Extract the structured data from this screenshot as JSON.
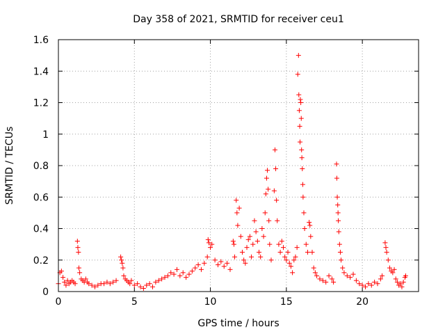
{
  "chart_data": {
    "type": "scatter",
    "title": "Day 358 of 2021, SRMTID for receiver ceu1",
    "xlabel": "GPS time / hours",
    "ylabel": "SRMTID / TECUs",
    "xlim": [
      0,
      23.7
    ],
    "ylim": [
      0,
      1.6
    ],
    "xticks": [
      0,
      5,
      10,
      15,
      20
    ],
    "xtick_labels": [
      "0",
      "5",
      "10",
      "15",
      "20"
    ],
    "yticks": [
      0,
      0.2,
      0.4,
      0.6,
      0.8,
      1.0,
      1.2,
      1.4,
      1.6
    ],
    "ytick_labels": [
      "0",
      "0.2",
      "0.4",
      "0.6",
      "0.8",
      "1",
      "1.2",
      "1.4",
      "1.6"
    ],
    "grid": true,
    "marker": "+",
    "color": "#ff0000",
    "series": [
      {
        "name": "SRMTID",
        "points": [
          [
            0.0,
            0.05
          ],
          [
            0.1,
            0.12
          ],
          [
            0.2,
            0.13
          ],
          [
            0.3,
            0.09
          ],
          [
            0.4,
            0.06
          ],
          [
            0.5,
            0.04
          ],
          [
            0.6,
            0.07
          ],
          [
            0.7,
            0.05
          ],
          [
            0.8,
            0.06
          ],
          [
            0.9,
            0.07
          ],
          [
            1.0,
            0.06
          ],
          [
            1.1,
            0.05
          ],
          [
            1.25,
            0.32
          ],
          [
            1.28,
            0.28
          ],
          [
            1.32,
            0.25
          ],
          [
            1.35,
            0.15
          ],
          [
            1.4,
            0.12
          ],
          [
            1.5,
            0.08
          ],
          [
            1.6,
            0.07
          ],
          [
            1.7,
            0.06
          ],
          [
            1.8,
            0.08
          ],
          [
            1.9,
            0.06
          ],
          [
            2.0,
            0.05
          ],
          [
            2.2,
            0.04
          ],
          [
            2.4,
            0.03
          ],
          [
            2.6,
            0.04
          ],
          [
            2.8,
            0.05
          ],
          [
            3.0,
            0.05
          ],
          [
            3.2,
            0.06
          ],
          [
            3.4,
            0.05
          ],
          [
            3.6,
            0.06
          ],
          [
            3.8,
            0.07
          ],
          [
            4.1,
            0.22
          ],
          [
            4.15,
            0.2
          ],
          [
            4.2,
            0.18
          ],
          [
            4.25,
            0.15
          ],
          [
            4.3,
            0.1
          ],
          [
            4.4,
            0.08
          ],
          [
            4.5,
            0.07
          ],
          [
            4.6,
            0.06
          ],
          [
            4.7,
            0.05
          ],
          [
            4.8,
            0.07
          ],
          [
            5.0,
            0.04
          ],
          [
            5.2,
            0.05
          ],
          [
            5.4,
            0.03
          ],
          [
            5.6,
            0.02
          ],
          [
            5.8,
            0.04
          ],
          [
            6.0,
            0.05
          ],
          [
            6.2,
            0.03
          ],
          [
            6.4,
            0.06
          ],
          [
            6.6,
            0.07
          ],
          [
            6.8,
            0.08
          ],
          [
            7.0,
            0.09
          ],
          [
            7.2,
            0.1
          ],
          [
            7.4,
            0.12
          ],
          [
            7.6,
            0.11
          ],
          [
            7.8,
            0.14
          ],
          [
            8.0,
            0.1
          ],
          [
            8.2,
            0.12
          ],
          [
            8.4,
            0.09
          ],
          [
            8.6,
            0.11
          ],
          [
            8.8,
            0.13
          ],
          [
            9.0,
            0.15
          ],
          [
            9.2,
            0.17
          ],
          [
            9.4,
            0.14
          ],
          [
            9.6,
            0.18
          ],
          [
            9.8,
            0.22
          ],
          [
            9.85,
            0.33
          ],
          [
            9.9,
            0.31
          ],
          [
            10.0,
            0.28
          ],
          [
            10.1,
            0.3
          ],
          [
            10.3,
            0.2
          ],
          [
            10.5,
            0.17
          ],
          [
            10.7,
            0.19
          ],
          [
            10.9,
            0.16
          ],
          [
            11.1,
            0.18
          ],
          [
            11.3,
            0.14
          ],
          [
            11.5,
            0.32
          ],
          [
            11.55,
            0.3
          ],
          [
            11.6,
            0.22
          ],
          [
            11.7,
            0.58
          ],
          [
            11.75,
            0.5
          ],
          [
            11.8,
            0.42
          ],
          [
            11.9,
            0.53
          ],
          [
            12.0,
            0.35
          ],
          [
            12.1,
            0.25
          ],
          [
            12.2,
            0.2
          ],
          [
            12.3,
            0.18
          ],
          [
            12.4,
            0.28
          ],
          [
            12.5,
            0.33
          ],
          [
            12.6,
            0.35
          ],
          [
            12.7,
            0.22
          ],
          [
            12.8,
            0.3
          ],
          [
            12.9,
            0.45
          ],
          [
            13.0,
            0.38
          ],
          [
            13.1,
            0.32
          ],
          [
            13.2,
            0.25
          ],
          [
            13.3,
            0.22
          ],
          [
            13.4,
            0.4
          ],
          [
            13.5,
            0.35
          ],
          [
            13.6,
            0.5
          ],
          [
            13.65,
            0.62
          ],
          [
            13.7,
            0.72
          ],
          [
            13.75,
            0.77
          ],
          [
            13.8,
            0.65
          ],
          [
            13.85,
            0.45
          ],
          [
            13.9,
            0.3
          ],
          [
            14.0,
            0.2
          ],
          [
            14.2,
            0.64
          ],
          [
            14.25,
            0.9
          ],
          [
            14.3,
            0.78
          ],
          [
            14.35,
            0.58
          ],
          [
            14.4,
            0.45
          ],
          [
            14.5,
            0.3
          ],
          [
            14.6,
            0.25
          ],
          [
            14.7,
            0.32
          ],
          [
            14.8,
            0.28
          ],
          [
            14.9,
            0.22
          ],
          [
            15.0,
            0.2
          ],
          [
            15.1,
            0.25
          ],
          [
            15.2,
            0.18
          ],
          [
            15.3,
            0.16
          ],
          [
            15.4,
            0.12
          ],
          [
            15.5,
            0.2
          ],
          [
            15.6,
            0.22
          ],
          [
            15.7,
            0.28
          ],
          [
            15.75,
            1.38
          ],
          [
            15.8,
            1.5
          ],
          [
            15.82,
            1.25
          ],
          [
            15.85,
            1.15
          ],
          [
            15.88,
            1.05
          ],
          [
            15.9,
            0.95
          ],
          [
            15.92,
            1.22
          ],
          [
            15.95,
            1.2
          ],
          [
            15.98,
            1.1
          ],
          [
            16.0,
            0.9
          ],
          [
            16.02,
            0.85
          ],
          [
            16.05,
            0.78
          ],
          [
            16.08,
            0.68
          ],
          [
            16.1,
            0.6
          ],
          [
            16.15,
            0.5
          ],
          [
            16.2,
            0.4
          ],
          [
            16.3,
            0.3
          ],
          [
            16.4,
            0.25
          ],
          [
            16.5,
            0.44
          ],
          [
            16.55,
            0.42
          ],
          [
            16.6,
            0.35
          ],
          [
            16.7,
            0.25
          ],
          [
            16.8,
            0.15
          ],
          [
            16.9,
            0.12
          ],
          [
            17.0,
            0.1
          ],
          [
            17.2,
            0.08
          ],
          [
            17.4,
            0.07
          ],
          [
            17.6,
            0.06
          ],
          [
            17.8,
            0.1
          ],
          [
            18.0,
            0.08
          ],
          [
            18.1,
            0.06
          ],
          [
            18.3,
            0.81
          ],
          [
            18.32,
            0.72
          ],
          [
            18.35,
            0.6
          ],
          [
            18.38,
            0.55
          ],
          [
            18.4,
            0.5
          ],
          [
            18.42,
            0.45
          ],
          [
            18.45,
            0.38
          ],
          [
            18.5,
            0.3
          ],
          [
            18.55,
            0.25
          ],
          [
            18.6,
            0.2
          ],
          [
            18.7,
            0.15
          ],
          [
            18.8,
            0.12
          ],
          [
            19.0,
            0.1
          ],
          [
            19.2,
            0.09
          ],
          [
            19.4,
            0.11
          ],
          [
            19.6,
            0.07
          ],
          [
            19.8,
            0.05
          ],
          [
            20.0,
            0.04
          ],
          [
            20.2,
            0.03
          ],
          [
            20.4,
            0.05
          ],
          [
            20.6,
            0.04
          ],
          [
            20.8,
            0.06
          ],
          [
            21.0,
            0.05
          ],
          [
            21.2,
            0.08
          ],
          [
            21.3,
            0.1
          ],
          [
            21.5,
            0.31
          ],
          [
            21.55,
            0.28
          ],
          [
            21.6,
            0.25
          ],
          [
            21.7,
            0.2
          ],
          [
            21.8,
            0.15
          ],
          [
            21.9,
            0.13
          ],
          [
            22.0,
            0.12
          ],
          [
            22.1,
            0.14
          ],
          [
            22.2,
            0.08
          ],
          [
            22.3,
            0.06
          ],
          [
            22.4,
            0.04
          ],
          [
            22.5,
            0.05
          ],
          [
            22.6,
            0.03
          ],
          [
            22.7,
            0.06
          ],
          [
            22.8,
            0.09
          ],
          [
            22.85,
            0.1
          ]
        ]
      }
    ]
  }
}
